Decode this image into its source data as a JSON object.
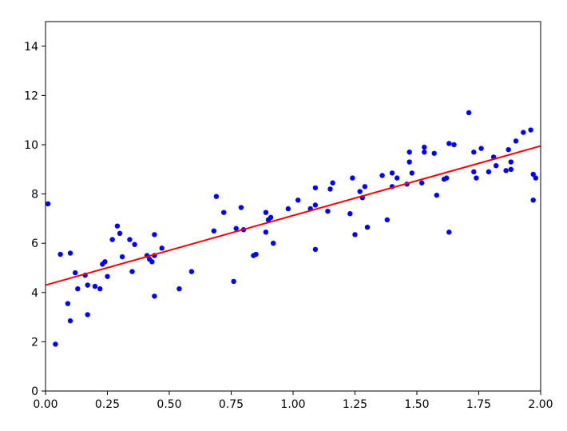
{
  "chart_data": {
    "type": "scatter",
    "title": "",
    "xlabel": "",
    "ylabel": "",
    "xlim": [
      0,
      2.0
    ],
    "ylim": [
      0,
      15
    ],
    "xticks": [
      "0.00",
      "0.25",
      "0.50",
      "0.75",
      "1.00",
      "1.25",
      "1.50",
      "1.75",
      "2.00"
    ],
    "yticks": [
      "0",
      "2",
      "4",
      "6",
      "8",
      "10",
      "12",
      "14"
    ],
    "grid": false,
    "legend": "none",
    "series": [
      {
        "type": "scatter",
        "color": "#0000ff",
        "points": [
          [
            0.01,
            7.6
          ],
          [
            0.04,
            1.9
          ],
          [
            0.06,
            5.55
          ],
          [
            0.09,
            3.55
          ],
          [
            0.1,
            5.6
          ],
          [
            0.1,
            2.85
          ],
          [
            0.12,
            4.8
          ],
          [
            0.13,
            4.15
          ],
          [
            0.16,
            4.7
          ],
          [
            0.17,
            4.3
          ],
          [
            0.17,
            3.1
          ],
          [
            0.2,
            4.25
          ],
          [
            0.22,
            4.15
          ],
          [
            0.23,
            5.15
          ],
          [
            0.24,
            5.25
          ],
          [
            0.25,
            4.65
          ],
          [
            0.27,
            6.15
          ],
          [
            0.29,
            6.7
          ],
          [
            0.3,
            6.4
          ],
          [
            0.31,
            5.45
          ],
          [
            0.34,
            6.15
          ],
          [
            0.35,
            4.85
          ],
          [
            0.36,
            5.95
          ],
          [
            0.41,
            5.5
          ],
          [
            0.42,
            5.35
          ],
          [
            0.43,
            5.25
          ],
          [
            0.44,
            5.5
          ],
          [
            0.44,
            6.35
          ],
          [
            0.44,
            3.85
          ],
          [
            0.47,
            5.8
          ],
          [
            0.54,
            4.15
          ],
          [
            0.59,
            4.85
          ],
          [
            0.68,
            6.5
          ],
          [
            0.69,
            7.9
          ],
          [
            0.72,
            7.25
          ],
          [
            0.76,
            4.45
          ],
          [
            0.77,
            6.6
          ],
          [
            0.79,
            7.45
          ],
          [
            0.8,
            6.55
          ],
          [
            0.84,
            5.5
          ],
          [
            0.85,
            5.55
          ],
          [
            0.89,
            6.45
          ],
          [
            0.89,
            7.25
          ],
          [
            0.9,
            6.95
          ],
          [
            0.91,
            7.05
          ],
          [
            0.92,
            6.0
          ],
          [
            0.98,
            7.4
          ],
          [
            1.02,
            7.75
          ],
          [
            1.07,
            7.4
          ],
          [
            1.09,
            7.55
          ],
          [
            1.09,
            8.25
          ],
          [
            1.09,
            5.75
          ],
          [
            1.14,
            7.3
          ],
          [
            1.15,
            8.2
          ],
          [
            1.16,
            8.45
          ],
          [
            1.23,
            7.2
          ],
          [
            1.24,
            8.65
          ],
          [
            1.25,
            6.35
          ],
          [
            1.27,
            8.1
          ],
          [
            1.28,
            7.85
          ],
          [
            1.29,
            8.3
          ],
          [
            1.3,
            6.65
          ],
          [
            1.36,
            8.75
          ],
          [
            1.38,
            6.95
          ],
          [
            1.4,
            8.3
          ],
          [
            1.4,
            8.85
          ],
          [
            1.42,
            8.65
          ],
          [
            1.46,
            8.4
          ],
          [
            1.47,
            9.3
          ],
          [
            1.47,
            9.7
          ],
          [
            1.48,
            8.85
          ],
          [
            1.52,
            8.45
          ],
          [
            1.53,
            9.9
          ],
          [
            1.53,
            9.7
          ],
          [
            1.57,
            9.65
          ],
          [
            1.58,
            7.95
          ],
          [
            1.61,
            8.6
          ],
          [
            1.62,
            8.65
          ],
          [
            1.63,
            10.05
          ],
          [
            1.63,
            6.45
          ],
          [
            1.65,
            10.0
          ],
          [
            1.71,
            11.3
          ],
          [
            1.73,
            9.7
          ],
          [
            1.73,
            8.9
          ],
          [
            1.74,
            8.65
          ],
          [
            1.76,
            9.85
          ],
          [
            1.79,
            8.9
          ],
          [
            1.81,
            9.5
          ],
          [
            1.82,
            9.15
          ],
          [
            1.86,
            8.95
          ],
          [
            1.87,
            9.8
          ],
          [
            1.88,
            9.3
          ],
          [
            1.88,
            9.0
          ],
          [
            1.9,
            10.15
          ],
          [
            1.93,
            10.5
          ],
          [
            1.96,
            10.6
          ],
          [
            1.97,
            7.75
          ],
          [
            1.97,
            8.8
          ],
          [
            1.98,
            8.65
          ]
        ]
      },
      {
        "type": "line",
        "color": "#ff0000",
        "points": [
          [
            0,
            4.3
          ],
          [
            2.0,
            9.95
          ]
        ]
      }
    ]
  }
}
